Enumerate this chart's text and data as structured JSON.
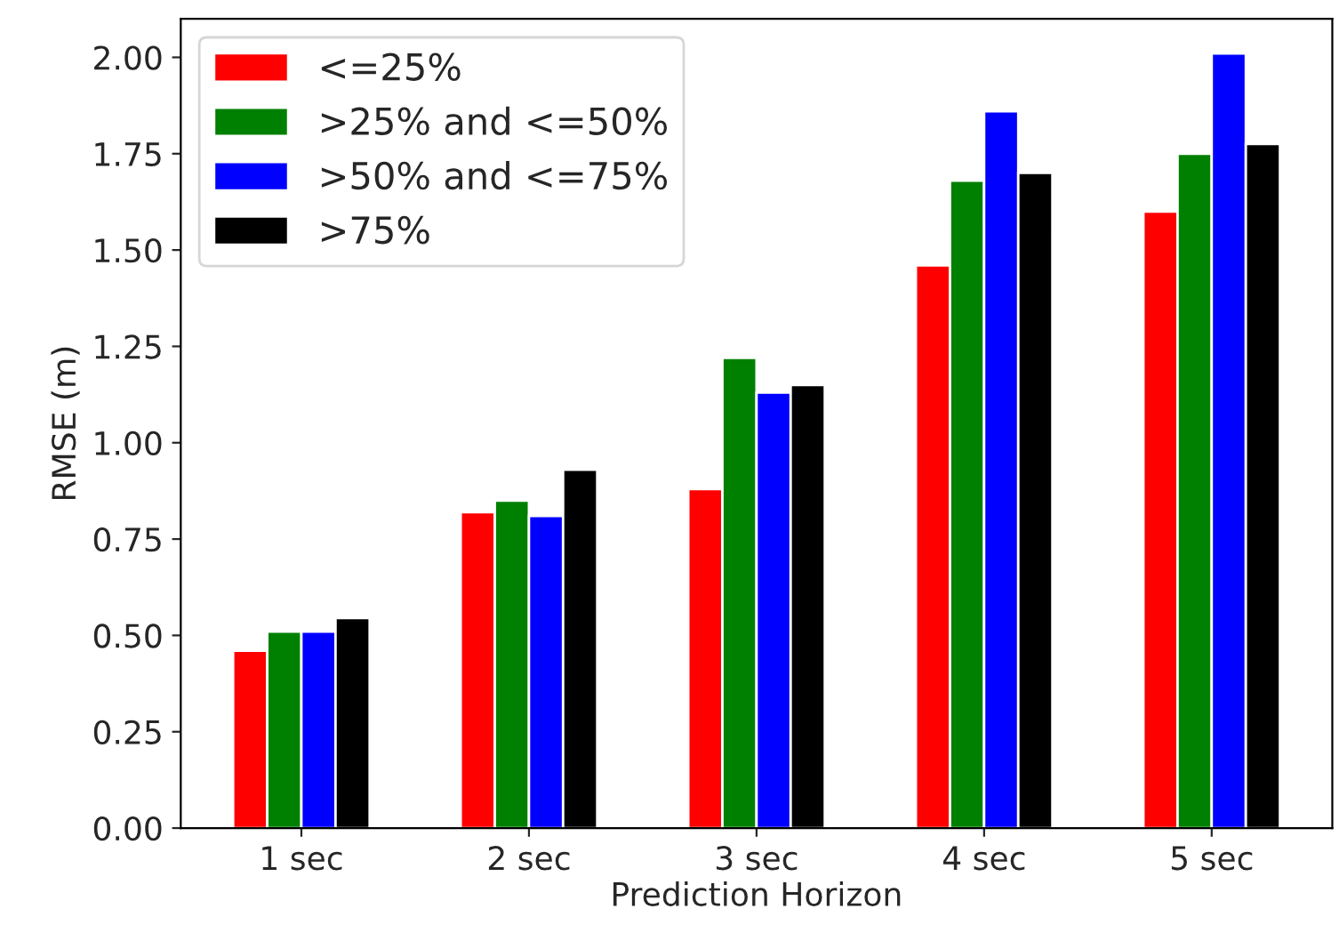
{
  "chart_data": {
    "type": "bar",
    "xlabel": "Prediction Horizon",
    "ylabel": "RMSE (m)",
    "categories": [
      "1 sec",
      "2 sec",
      "3 sec",
      "4 sec",
      "5 sec"
    ],
    "series": [
      {
        "name": "<=25%",
        "color": "#ff0000",
        "values": [
          0.46,
          0.82,
          0.88,
          1.46,
          1.6
        ]
      },
      {
        "name": ">25% and <=50%",
        "color": "#008000",
        "values": [
          0.51,
          0.85,
          1.22,
          1.68,
          1.75
        ]
      },
      {
        "name": ">50% and <=75%",
        "color": "#0000ff",
        "values": [
          0.51,
          0.81,
          1.13,
          1.86,
          2.01
        ]
      },
      {
        "name": ">75%",
        "color": "#000000",
        "values": [
          0.545,
          0.93,
          1.15,
          1.7,
          1.775
        ]
      }
    ],
    "ylim": [
      0,
      2.1
    ],
    "yticks": [
      {
        "value": 0,
        "label": "0.00"
      },
      {
        "value": 0.25,
        "label": "0.25"
      },
      {
        "value": 0.5,
        "label": "0.50"
      },
      {
        "value": 0.75,
        "label": "0.75"
      },
      {
        "value": 1.0,
        "label": "1.00"
      },
      {
        "value": 1.25,
        "label": "1.25"
      },
      {
        "value": 1.5,
        "label": "1.50"
      },
      {
        "value": 1.75,
        "label": "1.75"
      },
      {
        "value": 2.0,
        "label": "2.00"
      }
    ],
    "legend": "top left",
    "grid": false
  }
}
